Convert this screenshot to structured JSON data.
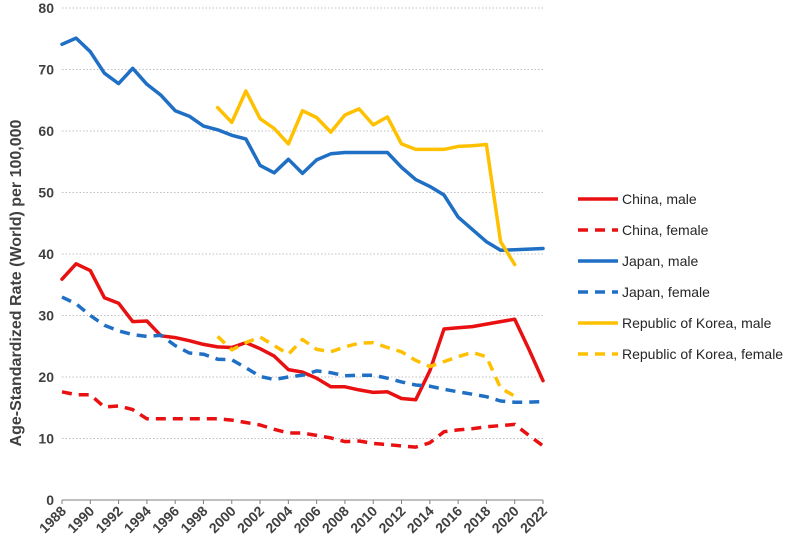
{
  "chart_data": {
    "type": "line",
    "title": "",
    "xlabel": "",
    "ylabel": "Age-Standardized Rate (World) per 100,000",
    "ylim": [
      0,
      80
    ],
    "yticks": [
      0,
      10,
      20,
      30,
      40,
      50,
      60,
      70,
      80
    ],
    "xticks": [
      1988,
      1990,
      1992,
      1994,
      1996,
      1998,
      2000,
      2002,
      2004,
      2006,
      2008,
      2010,
      2012,
      2014,
      2016,
      2018,
      2020,
      2022
    ],
    "x_start": 1988,
    "x_end": 2022,
    "grid": true,
    "legend_position": "right",
    "series": [
      {
        "name": "China, male",
        "color": "#e81010",
        "dash": "solid",
        "x_start": 1988,
        "values": [
          35.9,
          38.4,
          37.3,
          32.9,
          32.0,
          29.0,
          29.1,
          26.7,
          26.4,
          25.9,
          25.3,
          24.9,
          24.8,
          25.6,
          24.6,
          23.4,
          21.2,
          20.8,
          19.8,
          18.4,
          18.4,
          17.9,
          17.5,
          17.6,
          16.5,
          16.3,
          21.0,
          27.8,
          28.0,
          28.2,
          28.6,
          29.0,
          29.4,
          24.5,
          19.4
        ]
      },
      {
        "name": "China, female",
        "color": "#e81010",
        "dash": "dashed",
        "x_start": 1988,
        "values": [
          17.6,
          17.1,
          17.1,
          15.1,
          15.3,
          14.7,
          13.2,
          13.2,
          13.2,
          13.2,
          13.2,
          13.2,
          13.0,
          12.6,
          12.2,
          11.5,
          10.9,
          10.9,
          10.5,
          10.1,
          9.5,
          9.6,
          9.2,
          9.0,
          8.8,
          8.6,
          9.3,
          11.1,
          11.4,
          11.6,
          11.9,
          12.1,
          12.3,
          10.5,
          8.8
        ]
      },
      {
        "name": "Japan, male",
        "color": "#1f6fc5",
        "dash": "solid",
        "x_start": 1988,
        "values": [
          74.1,
          75.1,
          72.9,
          69.4,
          67.7,
          70.2,
          67.6,
          65.8,
          63.3,
          62.4,
          60.8,
          60.2,
          59.3,
          58.7,
          54.4,
          53.2,
          55.4,
          53.1,
          55.3,
          56.3,
          56.5,
          56.5,
          56.5,
          56.5,
          54.1,
          52.1,
          51.0,
          49.6,
          46.0,
          44.0,
          42.0,
          40.6,
          40.7,
          40.8,
          40.9
        ]
      },
      {
        "name": "Japan, female",
        "color": "#1f6fc5",
        "dash": "dashed",
        "x_start": 1988,
        "values": [
          33.0,
          31.9,
          30.0,
          28.4,
          27.5,
          26.9,
          26.6,
          26.8,
          25.1,
          23.9,
          23.7,
          22.9,
          22.8,
          21.5,
          20.1,
          19.6,
          20.0,
          20.3,
          21.0,
          20.7,
          20.2,
          20.3,
          20.3,
          19.8,
          19.2,
          18.7,
          18.5,
          18.0,
          17.6,
          17.2,
          16.8,
          16.1,
          15.9,
          15.9,
          16.0
        ]
      },
      {
        "name": "Republic of Korea, male",
        "color": "#ffc000",
        "dash": "solid",
        "x_start": 1999,
        "values": [
          63.8,
          61.4,
          66.5,
          62.0,
          60.4,
          57.9,
          63.3,
          62.2,
          59.8,
          62.6,
          63.6,
          61.0,
          62.3,
          57.9,
          57.0,
          57.0,
          57.0,
          57.5,
          57.6,
          57.8,
          42.0,
          38.3
        ]
      },
      {
        "name": "Republic of Korea, female",
        "color": "#ffc000",
        "dash": "dashed",
        "x_start": 1999,
        "values": [
          26.6,
          24.4,
          25.6,
          26.5,
          25.1,
          23.7,
          26.1,
          24.5,
          24.1,
          24.9,
          25.5,
          25.6,
          24.8,
          24.1,
          22.7,
          21.7,
          22.5,
          23.3,
          24.0,
          23.3,
          18.2,
          16.9
        ]
      }
    ]
  }
}
